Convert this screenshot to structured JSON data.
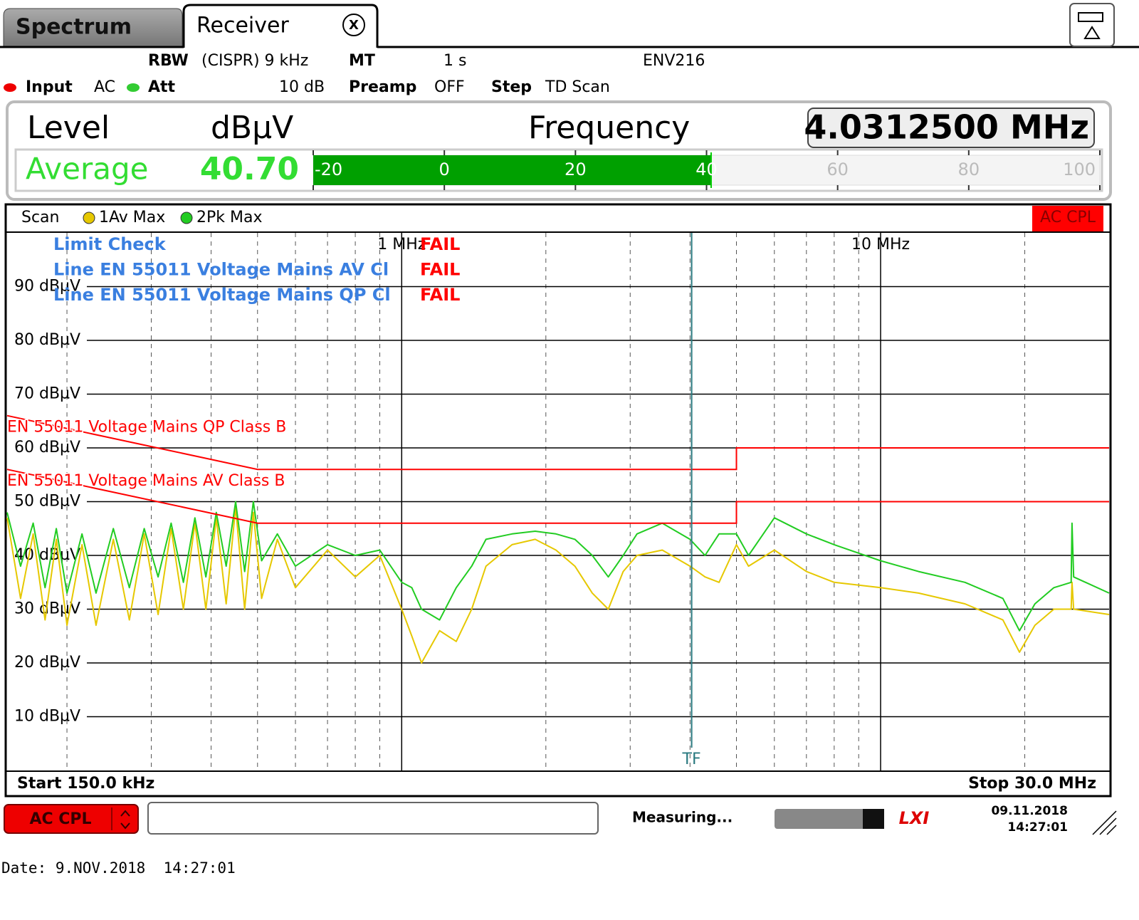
{
  "tabs": [
    "Spectrum",
    "Receiver"
  ],
  "close_button": "X",
  "settings": {
    "rbw_label": "RBW",
    "rbw_value": "(CISPR) 9 kHz",
    "mt_label": "MT",
    "mt_value": "1 s",
    "env": "ENV216",
    "input_label": "Input",
    "input_value": "AC",
    "att_label": "Att",
    "att_value": "10 dB",
    "preamp_label": "Preamp",
    "preamp_value": "OFF",
    "step_label": "Step",
    "step_value": "TD Scan"
  },
  "level_display": {
    "level_label": "Level",
    "unit": "dBµV",
    "frequency_label": "Frequency",
    "frequency": "4.0312500 MHz",
    "detector": "Average",
    "meter": {
      "value": 40.7,
      "value_label": "40.70",
      "lim": [
        -20,
        100
      ],
      "ticks": [
        -20,
        0,
        20,
        40,
        60,
        80,
        100
      ]
    }
  },
  "chart_data": {
    "type": "line",
    "title": "Scan",
    "coupling": "AC CPL",
    "x_scale": "log",
    "grid": true,
    "xlim": [
      0.15,
      30
    ],
    "ylim": [
      0,
      100
    ],
    "xticks": [
      {
        "value": 1,
        "label": "1 MHz"
      },
      {
        "value": 10,
        "label": "10 MHz"
      }
    ],
    "xminorticks": [
      0.2,
      0.3,
      0.4,
      0.5,
      0.6,
      0.7,
      0.8,
      0.9,
      2,
      3,
      4,
      5,
      6,
      7,
      8,
      9,
      20
    ],
    "yticks": [
      {
        "value": 10,
        "label": "10 dBµV"
      },
      {
        "value": 20,
        "label": "20 dBµV"
      },
      {
        "value": 30,
        "label": "30 dBµV"
      },
      {
        "value": 40,
        "label": "40 dBµV"
      },
      {
        "value": 50,
        "label": "50 dBµV"
      },
      {
        "value": 60,
        "label": "60 dBµV"
      },
      {
        "value": 70,
        "label": "70 dBµV"
      },
      {
        "value": 80,
        "label": "80 dBµV"
      },
      {
        "value": 90,
        "label": "90 dBµV"
      }
    ],
    "start_label": "Start 150.0 kHz",
    "stop_label": "Stop 30.0 MHz",
    "limit_check": [
      [
        "Limit Check",
        "FAIL"
      ],
      [
        "Line EN 55011 Voltage Mains AV Cl",
        "FAIL"
      ],
      [
        "Line EN 55011 Voltage Mains QP Cl",
        "FAIL"
      ]
    ],
    "limit_lines": [
      {
        "name": "EN 55011 Voltage Mains QP Class B",
        "color": "#ff0000",
        "x": [
          0.15,
          0.5,
          5,
          5,
          30
        ],
        "values": [
          66,
          56,
          56,
          60,
          60
        ]
      },
      {
        "name": "EN 55011 Voltage Mains AV Class B",
        "color": "#ff0000",
        "x": [
          0.15,
          0.5,
          5,
          5,
          30
        ],
        "values": [
          56,
          46,
          46,
          50,
          50
        ]
      }
    ],
    "marker": {
      "label": "TF",
      "x": 4.03125
    },
    "series": [
      {
        "name": "1Av Max",
        "color": "#e6c800",
        "x": [
          0.15,
          0.16,
          0.17,
          0.18,
          0.19,
          0.2,
          0.215,
          0.23,
          0.25,
          0.27,
          0.29,
          0.31,
          0.33,
          0.35,
          0.37,
          0.39,
          0.41,
          0.43,
          0.45,
          0.47,
          0.49,
          0.51,
          0.55,
          0.6,
          0.7,
          0.8,
          0.9,
          1.0,
          1.05,
          1.1,
          1.2,
          1.3,
          1.4,
          1.5,
          1.7,
          1.9,
          2.1,
          2.3,
          2.5,
          2.7,
          2.9,
          3.1,
          3.5,
          4.0,
          4.3,
          4.6,
          5.0,
          5.3,
          6.0,
          7.0,
          8.0,
          10,
          12,
          15,
          18,
          19.5,
          21,
          23,
          25,
          25.1,
          25.3,
          30
        ],
        "values": [
          47,
          32,
          44,
          28,
          43,
          27,
          42,
          27,
          43,
          28,
          44,
          29,
          45,
          30,
          46,
          30,
          47,
          31,
          49,
          30,
          48,
          32,
          43,
          34,
          41,
          36,
          40,
          30,
          25,
          20,
          26,
          24,
          30,
          38,
          42,
          43,
          41,
          38,
          33,
          30,
          37,
          40,
          41,
          38,
          36,
          35,
          42,
          38,
          41,
          37,
          35,
          34,
          33,
          31,
          28,
          22,
          27,
          30,
          30,
          35,
          30,
          29
        ]
      },
      {
        "name": "2Pk Max",
        "color": "#22cc22",
        "x": [
          0.15,
          0.16,
          0.17,
          0.18,
          0.19,
          0.2,
          0.215,
          0.23,
          0.25,
          0.27,
          0.29,
          0.31,
          0.33,
          0.35,
          0.37,
          0.39,
          0.41,
          0.43,
          0.45,
          0.47,
          0.49,
          0.51,
          0.55,
          0.6,
          0.7,
          0.8,
          0.9,
          1.0,
          1.05,
          1.1,
          1.2,
          1.3,
          1.4,
          1.5,
          1.7,
          1.9,
          2.1,
          2.3,
          2.5,
          2.7,
          2.9,
          3.1,
          3.5,
          4.0,
          4.3,
          4.6,
          5.0,
          5.3,
          6.0,
          7.0,
          8.0,
          10,
          12,
          15,
          18,
          19.5,
          21,
          23,
          25,
          25.1,
          25.3,
          30
        ],
        "values": [
          48,
          38,
          46,
          34,
          45,
          33,
          44,
          33,
          45,
          34,
          45,
          36,
          46,
          35,
          47,
          36,
          48,
          38,
          50,
          37,
          50,
          39,
          44,
          38,
          42,
          40,
          41,
          35,
          34,
          30,
          28,
          34,
          38,
          43,
          44,
          44.5,
          44,
          43,
          40,
          36,
          40,
          44,
          46,
          43,
          40,
          44,
          44,
          40,
          47,
          44,
          42,
          39,
          37,
          35,
          32,
          26,
          31,
          34,
          35,
          46,
          36,
          33
        ]
      }
    ]
  },
  "status": {
    "coupling": "AC CPL",
    "state": "Measuring...",
    "logo": "LXI",
    "date": "09.11.2018",
    "time": "14:27:01"
  },
  "footer": "Date: 9.NOV.2018  14:27:01"
}
